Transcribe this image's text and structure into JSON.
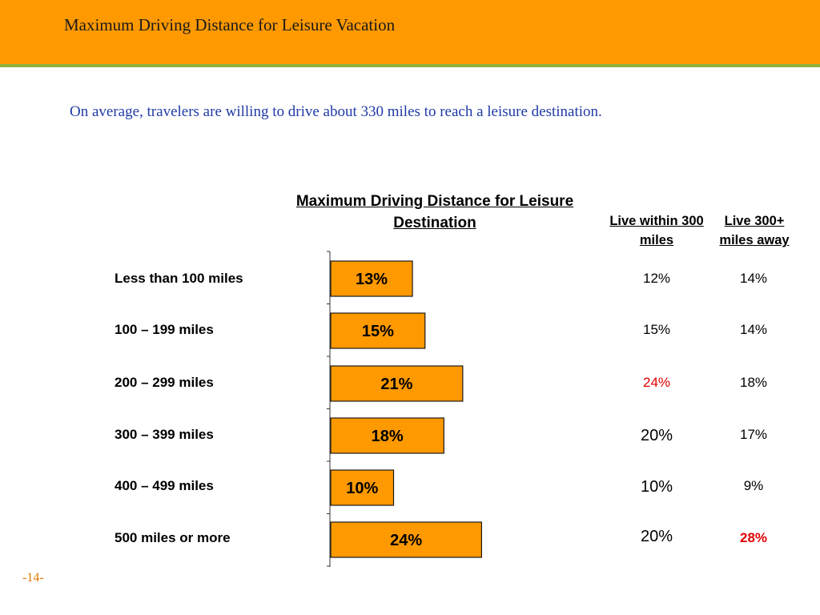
{
  "header": {
    "title": "Maximum Driving Distance for Leisure Vacation"
  },
  "subtitle": "On average, travelers are willing to drive about 330 miles to reach a leisure destination.",
  "columns": {
    "live_within": "Live within 300 miles",
    "live_away": "Live 300+ miles away"
  },
  "rows": [
    {
      "label": "Less than 100 miles",
      "within": "12%",
      "away": "14%"
    },
    {
      "label": "100 – 199 miles",
      "within": "15%",
      "away": "14%"
    },
    {
      "label": "200 – 299 miles",
      "within": "24%",
      "away": "18%"
    },
    {
      "label": "300 – 399 miles",
      "within": "20%",
      "away": "17%"
    },
    {
      "label": "400 – 499 miles",
      "within": "10%",
      "away": "9%"
    },
    {
      "label": "500 miles or more",
      "within": "20%",
      "away": "28%"
    }
  ],
  "chart_data": {
    "type": "bar",
    "orientation": "horizontal",
    "title": "Maximum Driving Distance for Leisure Destination",
    "categories": [
      "Less than 100 miles",
      "100 – 199 miles",
      "200 – 299 miles",
      "300 – 399 miles",
      "400 – 499 miles",
      "500 miles or more"
    ],
    "values": [
      13,
      15,
      21,
      18,
      10,
      24
    ],
    "value_labels": [
      "13%",
      "15%",
      "21%",
      "18%",
      "10%",
      "24%"
    ],
    "xlabel": "",
    "ylabel": "",
    "xlim": [
      0,
      30
    ],
    "grid": false,
    "legend": "none",
    "bar_color": "#FF9900",
    "bar_edge_color": "#1a1a1a",
    "highlight_color": "#E00000"
  },
  "footer": {
    "page_number": "-14-"
  }
}
